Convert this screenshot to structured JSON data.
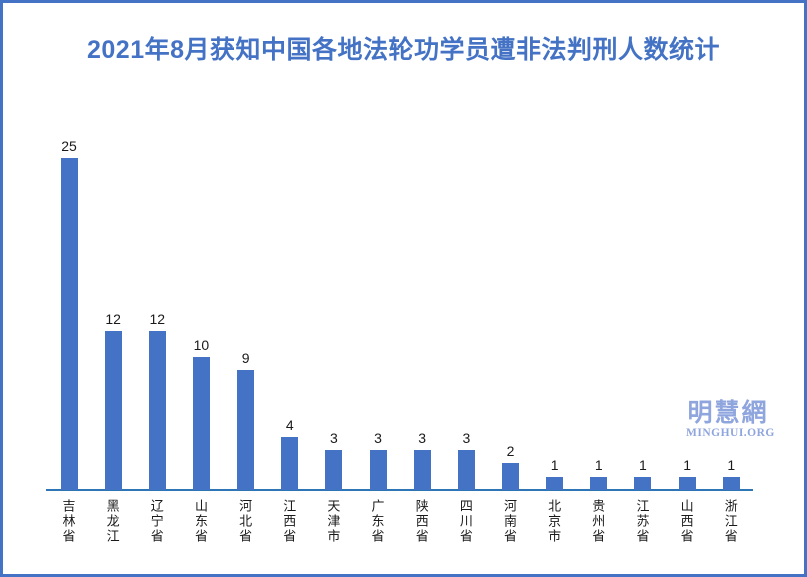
{
  "title": "2021年8月获知中国各地法轮功学员遭非法判刑人数统计",
  "watermark": {
    "cjk": "明慧網",
    "latin": "MINGHUI.ORG"
  },
  "colors": {
    "bar": "#4472C4",
    "axis": "#2E75B6",
    "title": "#4472C4",
    "border": "#4472C4",
    "watermark": "#8FA5DE",
    "data_label": "#1a1a1a"
  },
  "chart_data": {
    "type": "bar",
    "title": "2021年8月获知中国各地法轮功学员遭非法判刑人数统计",
    "categories": [
      "吉林省",
      "黑龙江",
      "辽宁省",
      "山东省",
      "河北省",
      "江西省",
      "天津市",
      "广东省",
      "陕西省",
      "四川省",
      "河南省",
      "北京市",
      "贵州省",
      "江苏省",
      "山西省",
      "浙江省"
    ],
    "values": [
      25,
      12,
      12,
      10,
      9,
      4,
      3,
      3,
      3,
      3,
      2,
      1,
      1,
      1,
      1,
      1
    ],
    "xlabel": "",
    "ylabel": "",
    "ylim": [
      0,
      25
    ],
    "grid": false,
    "legend": false,
    "data_labels": true,
    "bar_color": "#4472C4"
  }
}
